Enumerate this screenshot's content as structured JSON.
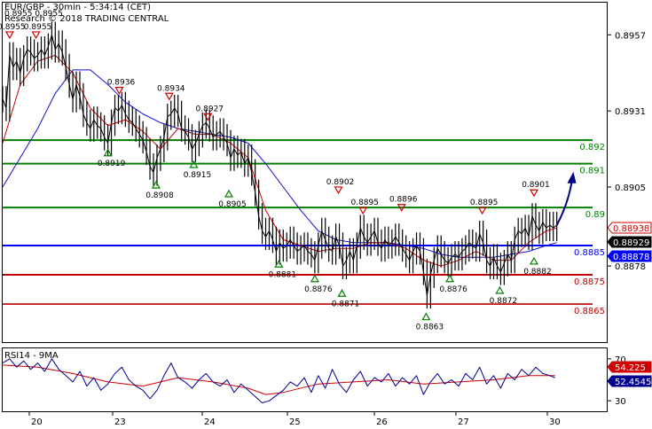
{
  "header": {
    "title": "EUR/GBP - 30min - 5:34:14 (CET)",
    "ohlc_partial": "0.8955 0.8955",
    "copyright": "Research © 2018 TRADING CENTRAL"
  },
  "rsi_panel": {
    "label": "RSI14 - 9MA"
  },
  "colors": {
    "price": "#000000",
    "fast_ma": "#d00000",
    "slow_ma": "#1010d0",
    "support_resistance_green": "#008000",
    "pivot_blue": "#0000ff",
    "support_red": "#c00000",
    "current_price_box": "#000000",
    "rsi_line": "#000090",
    "rsi_ma": "#d00000",
    "arrow": "#000080"
  },
  "chart_data": {
    "type": "line",
    "title": "EUR/GBP - 30min - 5:34:14 (CET)",
    "ylim": [
      0.8852,
      0.8968
    ],
    "y_ticks": [
      "0.8957",
      "0.8931",
      "0.8905",
      "0.8878"
    ],
    "x_tick_labels": [
      "20",
      "23",
      "24",
      "25",
      "26",
      "27",
      "30"
    ],
    "price": [
      [
        0,
        0.8935
      ],
      [
        4,
        0.8932
      ],
      [
        8,
        0.895
      ],
      [
        12,
        0.8946
      ],
      [
        16,
        0.8948
      ],
      [
        20,
        0.8944
      ],
      [
        24,
        0.8949
      ],
      [
        28,
        0.8952
      ],
      [
        32,
        0.8951
      ],
      [
        36,
        0.8949
      ],
      [
        40,
        0.895
      ],
      [
        44,
        0.8952
      ],
      [
        48,
        0.895
      ],
      [
        52,
        0.8953
      ],
      [
        56,
        0.8957
      ],
      [
        60,
        0.8952
      ],
      [
        64,
        0.8954
      ],
      [
        68,
        0.8951
      ],
      [
        72,
        0.8946
      ],
      [
        76,
        0.894
      ],
      [
        80,
        0.8935
      ],
      [
        84,
        0.894
      ],
      [
        88,
        0.8936
      ],
      [
        92,
        0.893
      ],
      [
        96,
        0.8927
      ],
      [
        100,
        0.8925
      ],
      [
        104,
        0.8928
      ],
      [
        108,
        0.8926
      ],
      [
        112,
        0.8925
      ],
      [
        116,
        0.8922
      ],
      [
        120,
        0.892
      ],
      [
        124,
        0.8927
      ],
      [
        128,
        0.8932
      ],
      [
        132,
        0.8931
      ],
      [
        136,
        0.8933
      ],
      [
        140,
        0.893
      ],
      [
        144,
        0.8928
      ],
      [
        148,
        0.8927
      ],
      [
        152,
        0.8925
      ],
      [
        156,
        0.8923
      ],
      [
        160,
        0.8921
      ],
      [
        164,
        0.8917
      ],
      [
        168,
        0.8912
      ],
      [
        172,
        0.891
      ],
      [
        176,
        0.8915
      ],
      [
        180,
        0.8918
      ],
      [
        184,
        0.8922
      ],
      [
        188,
        0.8929
      ],
      [
        192,
        0.893
      ],
      [
        196,
        0.8932
      ],
      [
        200,
        0.893
      ],
      [
        204,
        0.8925
      ],
      [
        208,
        0.8924
      ],
      [
        212,
        0.8922
      ],
      [
        216,
        0.8918
      ],
      [
        220,
        0.892
      ],
      [
        224,
        0.8923
      ],
      [
        228,
        0.8926
      ],
      [
        232,
        0.8927
      ],
      [
        236,
        0.8925
      ],
      [
        240,
        0.8922
      ],
      [
        244,
        0.8923
      ],
      [
        248,
        0.8924
      ],
      [
        252,
        0.8922
      ],
      [
        256,
        0.892
      ],
      [
        260,
        0.8915
      ],
      [
        264,
        0.8918
      ],
      [
        268,
        0.8916
      ],
      [
        272,
        0.8917
      ],
      [
        276,
        0.8913
      ],
      [
        280,
        0.8915
      ],
      [
        284,
        0.891
      ],
      [
        288,
        0.8903
      ],
      [
        292,
        0.8895
      ],
      [
        296,
        0.889
      ],
      [
        300,
        0.8888
      ],
      [
        304,
        0.889
      ],
      [
        308,
        0.8887
      ],
      [
        312,
        0.8883
      ],
      [
        316,
        0.8886
      ],
      [
        320,
        0.8884
      ],
      [
        324,
        0.8885
      ],
      [
        328,
        0.8887
      ],
      [
        332,
        0.8885
      ],
      [
        336,
        0.8883
      ],
      [
        340,
        0.8884
      ],
      [
        344,
        0.8885
      ],
      [
        348,
        0.8883
      ],
      [
        352,
        0.8882
      ],
      [
        356,
        0.888
      ],
      [
        360,
        0.8885
      ],
      [
        364,
        0.889
      ],
      [
        368,
        0.8887
      ],
      [
        372,
        0.8884
      ],
      [
        376,
        0.8883
      ],
      [
        380,
        0.8888
      ],
      [
        384,
        0.8885
      ],
      [
        388,
        0.8878
      ],
      [
        392,
        0.888
      ],
      [
        396,
        0.8883
      ],
      [
        400,
        0.888
      ],
      [
        404,
        0.8885
      ],
      [
        408,
        0.8891
      ],
      [
        412,
        0.8888
      ],
      [
        416,
        0.8886
      ],
      [
        420,
        0.8888
      ],
      [
        424,
        0.889
      ],
      [
        428,
        0.8886
      ],
      [
        432,
        0.8884
      ],
      [
        436,
        0.8887
      ],
      [
        440,
        0.8885
      ],
      [
        444,
        0.8886
      ],
      [
        448,
        0.8888
      ],
      [
        452,
        0.8886
      ],
      [
        456,
        0.8884
      ],
      [
        460,
        0.8882
      ],
      [
        464,
        0.888
      ],
      [
        468,
        0.8883
      ],
      [
        472,
        0.8885
      ],
      [
        476,
        0.8883
      ],
      [
        480,
        0.8876
      ],
      [
        484,
        0.8868
      ],
      [
        488,
        0.8875
      ],
      [
        492,
        0.888
      ],
      [
        496,
        0.8884
      ],
      [
        500,
        0.8882
      ],
      [
        504,
        0.888
      ],
      [
        508,
        0.8879
      ],
      [
        512,
        0.8881
      ],
      [
        516,
        0.8882
      ],
      [
        520,
        0.8881
      ],
      [
        524,
        0.8883
      ],
      [
        528,
        0.8884
      ],
      [
        532,
        0.8886
      ],
      [
        536,
        0.8885
      ],
      [
        540,
        0.8884
      ],
      [
        544,
        0.8889
      ],
      [
        548,
        0.8886
      ],
      [
        552,
        0.888
      ],
      [
        556,
        0.8878
      ],
      [
        560,
        0.8881
      ],
      [
        564,
        0.8878
      ],
      [
        568,
        0.8876
      ],
      [
        572,
        0.8879
      ],
      [
        576,
        0.8882
      ],
      [
        580,
        0.888
      ],
      [
        584,
        0.8887
      ],
      [
        588,
        0.889
      ],
      [
        592,
        0.8889
      ],
      [
        596,
        0.8891
      ],
      [
        600,
        0.8888
      ],
      [
        604,
        0.8895
      ],
      [
        608,
        0.8892
      ],
      [
        612,
        0.889
      ],
      [
        616,
        0.8893
      ],
      [
        620,
        0.8891
      ],
      [
        624,
        0.8892
      ],
      [
        628,
        0.8891
      ],
      [
        632,
        0.8892
      ]
    ],
    "fast_ma": [
      [
        0,
        0.892
      ],
      [
        20,
        0.894
      ],
      [
        40,
        0.8948
      ],
      [
        60,
        0.895
      ],
      [
        80,
        0.8944
      ],
      [
        100,
        0.8932
      ],
      [
        120,
        0.8926
      ],
      [
        140,
        0.8928
      ],
      [
        160,
        0.8924
      ],
      [
        180,
        0.8918
      ],
      [
        200,
        0.8925
      ],
      [
        220,
        0.8923
      ],
      [
        240,
        0.8923
      ],
      [
        260,
        0.892
      ],
      [
        280,
        0.8915
      ],
      [
        300,
        0.8897
      ],
      [
        320,
        0.8887
      ],
      [
        340,
        0.8885
      ],
      [
        360,
        0.8883
      ],
      [
        380,
        0.8884
      ],
      [
        400,
        0.8884
      ],
      [
        420,
        0.8886
      ],
      [
        440,
        0.8886
      ],
      [
        460,
        0.8884
      ],
      [
        480,
        0.888
      ],
      [
        500,
        0.8878
      ],
      [
        520,
        0.888
      ],
      [
        540,
        0.8883
      ],
      [
        560,
        0.888
      ],
      [
        580,
        0.888
      ],
      [
        600,
        0.8886
      ],
      [
        620,
        0.889
      ],
      [
        632,
        0.8891
      ]
    ],
    "slow_ma": [
      [
        0,
        0.8905
      ],
      [
        40,
        0.8925
      ],
      [
        60,
        0.8937
      ],
      [
        80,
        0.8945
      ],
      [
        100,
        0.8945
      ],
      [
        120,
        0.894
      ],
      [
        140,
        0.8934
      ],
      [
        160,
        0.893
      ],
      [
        180,
        0.8927
      ],
      [
        200,
        0.8925
      ],
      [
        220,
        0.8924
      ],
      [
        240,
        0.8923
      ],
      [
        260,
        0.8922
      ],
      [
        280,
        0.892
      ],
      [
        300,
        0.8913
      ],
      [
        320,
        0.8905
      ],
      [
        340,
        0.8897
      ],
      [
        360,
        0.889
      ],
      [
        380,
        0.8887
      ],
      [
        400,
        0.8886
      ],
      [
        420,
        0.8886
      ],
      [
        440,
        0.8886
      ],
      [
        460,
        0.8885
      ],
      [
        480,
        0.8884
      ],
      [
        500,
        0.8882
      ],
      [
        520,
        0.8881
      ],
      [
        540,
        0.8881
      ],
      [
        560,
        0.8881
      ],
      [
        580,
        0.8882
      ],
      [
        600,
        0.8883
      ],
      [
        620,
        0.8885
      ],
      [
        632,
        0.8886
      ]
    ],
    "forecast_arrow": {
      "from": [
        632,
        0.8892
      ],
      "to": [
        650,
        0.8909
      ]
    },
    "levels": [
      {
        "value": 0.8921,
        "label": "0.892",
        "color": "#008000",
        "width": 2
      },
      {
        "value": 0.8913,
        "label": "0.891",
        "color": "#008000",
        "width": 2
      },
      {
        "value": 0.8898,
        "label": "0.89",
        "color": "#008000",
        "width": 2
      },
      {
        "value": 0.8885,
        "label": "0.8885",
        "color": "#0000ff",
        "width": 2
      },
      {
        "value": 0.8875,
        "label": "0.8875",
        "color": "#c00000",
        "width": 2
      },
      {
        "value": 0.8865,
        "label": "0.8865",
        "color": "#c00000",
        "width": 1.6
      }
    ],
    "current_prices": [
      {
        "value": 0.88938,
        "label": "0.88938",
        "style": "outline-red"
      },
      {
        "value": 0.88929,
        "label": "0.88929",
        "style": "filled-black"
      },
      {
        "value": 0.88878,
        "label": "0.88878",
        "style": "filled-blue"
      }
    ],
    "swing_highs": [
      {
        "x": 8,
        "y": 0.8955,
        "label": "0.8955"
      },
      {
        "x": 38,
        "y": 0.8955,
        "label": "0.8955"
      },
      {
        "x": 133,
        "y": 0.8936,
        "label": "0.8936"
      },
      {
        "x": 190,
        "y": 0.8934,
        "label": "0.8934"
      },
      {
        "x": 234,
        "y": 0.8927,
        "label": "0.8927"
      },
      {
        "x": 383,
        "y": 0.8902,
        "label": "0.8902"
      },
      {
        "x": 411,
        "y": 0.8895,
        "label": "0.8895"
      },
      {
        "x": 455,
        "y": 0.8896,
        "label": "0.8896"
      },
      {
        "x": 547,
        "y": 0.8895,
        "label": "0.8895"
      },
      {
        "x": 606,
        "y": 0.8901,
        "label": "0.8901"
      }
    ],
    "swing_lows": [
      {
        "x": 120,
        "y": 0.8919,
        "label": "0.8919"
      },
      {
        "x": 175,
        "y": 0.8908,
        "label": "0.8908"
      },
      {
        "x": 218,
        "y": 0.8915,
        "label": "0.8915"
      },
      {
        "x": 258,
        "y": 0.8905,
        "label": "0.8905"
      },
      {
        "x": 315,
        "y": 0.8881,
        "label": "0.8881"
      },
      {
        "x": 356,
        "y": 0.8876,
        "label": "0.8876"
      },
      {
        "x": 387,
        "y": 0.8871,
        "label": "0.8871"
      },
      {
        "x": 483,
        "y": 0.8863,
        "label": "0.8863"
      },
      {
        "x": 510,
        "y": 0.8876,
        "label": "0.8876"
      },
      {
        "x": 567,
        "y": 0.8872,
        "label": "0.8872"
      },
      {
        "x": 606,
        "y": 0.8882,
        "label": "0.8882"
      }
    ],
    "rsi": {
      "ylim": [
        20,
        80
      ],
      "y_ticks": [
        "70",
        "30"
      ],
      "current_values": [
        {
          "value": 54.225,
          "label": "54.225",
          "style": "filled-red"
        },
        {
          "value": 52.4545,
          "label": "52.4545",
          "style": "filled-navy"
        }
      ],
      "line": [
        [
          0,
          66
        ],
        [
          8,
          70
        ],
        [
          16,
          62
        ],
        [
          24,
          68
        ],
        [
          32,
          60
        ],
        [
          40,
          66
        ],
        [
          48,
          58
        ],
        [
          56,
          70
        ],
        [
          64,
          60
        ],
        [
          72,
          54
        ],
        [
          80,
          48
        ],
        [
          88,
          58
        ],
        [
          96,
          44
        ],
        [
          104,
          52
        ],
        [
          112,
          40
        ],
        [
          120,
          46
        ],
        [
          128,
          56
        ],
        [
          136,
          62
        ],
        [
          144,
          50
        ],
        [
          152,
          44
        ],
        [
          160,
          40
        ],
        [
          168,
          32
        ],
        [
          176,
          40
        ],
        [
          184,
          54
        ],
        [
          192,
          66
        ],
        [
          200,
          52
        ],
        [
          208,
          48
        ],
        [
          216,
          42
        ],
        [
          224,
          50
        ],
        [
          232,
          56
        ],
        [
          240,
          48
        ],
        [
          248,
          44
        ],
        [
          256,
          50
        ],
        [
          264,
          38
        ],
        [
          272,
          46
        ],
        [
          280,
          40
        ],
        [
          288,
          34
        ],
        [
          296,
          28
        ],
        [
          304,
          30
        ],
        [
          312,
          35
        ],
        [
          320,
          40
        ],
        [
          328,
          48
        ],
        [
          336,
          44
        ],
        [
          344,
          52
        ],
        [
          352,
          38
        ],
        [
          360,
          54
        ],
        [
          368,
          42
        ],
        [
          376,
          60
        ],
        [
          384,
          46
        ],
        [
          392,
          38
        ],
        [
          400,
          50
        ],
        [
          408,
          58
        ],
        [
          416,
          44
        ],
        [
          424,
          52
        ],
        [
          432,
          48
        ],
        [
          440,
          56
        ],
        [
          448,
          44
        ],
        [
          456,
          52
        ],
        [
          464,
          46
        ],
        [
          472,
          54
        ],
        [
          480,
          36
        ],
        [
          488,
          48
        ],
        [
          496,
          56
        ],
        [
          504,
          46
        ],
        [
          512,
          50
        ],
        [
          520,
          44
        ],
        [
          528,
          56
        ],
        [
          536,
          50
        ],
        [
          544,
          62
        ],
        [
          552,
          46
        ],
        [
          560,
          54
        ],
        [
          568,
          42
        ],
        [
          576,
          56
        ],
        [
          584,
          50
        ],
        [
          592,
          60
        ],
        [
          600,
          54
        ],
        [
          608,
          62
        ],
        [
          616,
          56
        ],
        [
          624,
          54
        ],
        [
          630,
          52
        ]
      ],
      "ma": [
        [
          0,
          64
        ],
        [
          40,
          62
        ],
        [
          80,
          56
        ],
        [
          120,
          48
        ],
        [
          160,
          44
        ],
        [
          200,
          52
        ],
        [
          240,
          48
        ],
        [
          280,
          42
        ],
        [
          300,
          36
        ],
        [
          320,
          38
        ],
        [
          360,
          46
        ],
        [
          400,
          48
        ],
        [
          440,
          50
        ],
        [
          480,
          46
        ],
        [
          520,
          48
        ],
        [
          560,
          50
        ],
        [
          600,
          54
        ],
        [
          630,
          54
        ]
      ]
    }
  }
}
